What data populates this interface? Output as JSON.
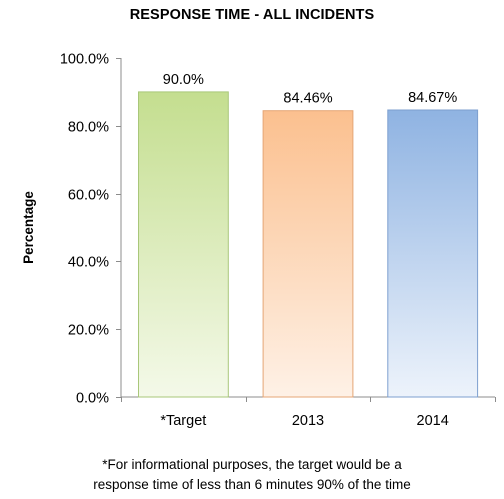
{
  "chart_data": {
    "type": "bar",
    "title": "RESPONSE TIME - ALL INCIDENTS",
    "ylabel": "Percentage",
    "xlabel": "",
    "categories": [
      "*Target",
      "2013",
      "2014"
    ],
    "values": [
      90.0,
      84.46,
      84.67
    ],
    "data_labels": [
      "90.0%",
      "84.46%",
      "84.67%"
    ],
    "ylim": [
      0,
      100
    ],
    "yticks": [
      0,
      20,
      40,
      60,
      80,
      100
    ],
    "ytick_labels": [
      "0.0%",
      "20.0%",
      "40.0%",
      "60.0%",
      "80.0%",
      "100.0%"
    ],
    "grid": false,
    "legend": "none",
    "bar_colors": [
      {
        "top": "#c4de8f",
        "bottom": "#f4f9e9",
        "stroke": "#a9c77a"
      },
      {
        "top": "#fbc08f",
        "bottom": "#fef1e6",
        "stroke": "#e5a676"
      },
      {
        "top": "#8fb3e2",
        "bottom": "#edf3fb",
        "stroke": "#7d9fcf"
      }
    ]
  },
  "footnote": {
    "line1": "*For informational purposes, the target would be a",
    "line2": "response time of less than 6 minutes 90% of the time"
  }
}
